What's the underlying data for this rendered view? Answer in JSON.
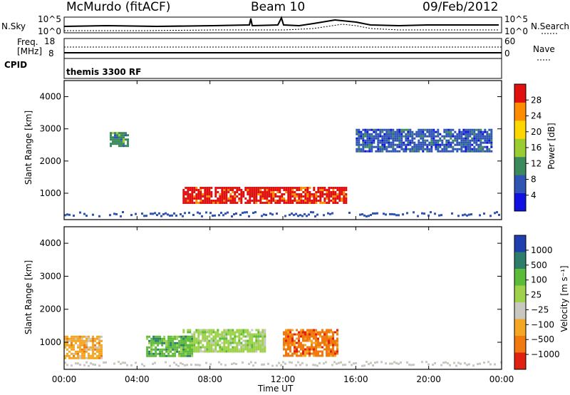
{
  "header": {
    "station": "McMurdo (fitACF)",
    "beam": "Beam 10",
    "date": "09/Feb/2012"
  },
  "noise_panel": {
    "left_label": "N.Sky",
    "right_label": "N.Search",
    "left_ticks": [
      "10^5",
      "10^0"
    ],
    "right_ticks": [
      "10^5",
      "10^0"
    ]
  },
  "freq_panel": {
    "left_label_1": "Freq.",
    "left_label_2": "[MHz]",
    "right_label": "Nave",
    "left_ticks": [
      "18",
      "8"
    ],
    "right_ticks": [
      "60",
      "0"
    ]
  },
  "cpid": {
    "label": "CPID",
    "value": "themis 3300 RF"
  },
  "chart_data": [
    {
      "type": "heatmap",
      "ylabel": "Slant Range [km]",
      "y_ticks": [
        "1000",
        "2000",
        "3000",
        "4000"
      ],
      "colorbar_label": "Power [dB]",
      "colorbar_ticks": [
        "4",
        "8",
        "12",
        "16",
        "20",
        "24",
        "28"
      ],
      "colorbar_colors": [
        "#1010e0",
        "#2f55b4",
        "#3a8a5c",
        "#9acd32",
        "#ffd700",
        "#ff8c00",
        "#e01010"
      ],
      "region_summary": [
        {
          "time_range": [
            "06:30",
            "15:30"
          ],
          "range_km": [
            700,
            1200
          ],
          "level_db": 28
        },
        {
          "time_range": [
            "02:30",
            "03:30"
          ],
          "range_km": [
            2500,
            2900
          ],
          "level_db": 12
        },
        {
          "time_range": [
            "16:00",
            "23:30"
          ],
          "range_km": [
            2300,
            3000
          ],
          "level_db": 8
        }
      ]
    },
    {
      "type": "heatmap",
      "ylabel": "Slant Range [km]",
      "xlabel": "Time UT",
      "x_ticks": [
        "00:00",
        "04:00",
        "08:00",
        "12:00",
        "16:00",
        "20:00",
        "00:00"
      ],
      "y_ticks": [
        "1000",
        "2000",
        "3000",
        "4000"
      ],
      "colorbar_label": "Velocity [m s⁻¹]",
      "colorbar_ticks": [
        "1000",
        "500",
        "100",
        "25",
        "−25",
        "−100",
        "−500",
        "−1000"
      ],
      "colorbar_colors": [
        "#1f3fb0",
        "#2e7d6a",
        "#5dbb3a",
        "#9ed24a",
        "#c8c8c0",
        "#f5a623",
        "#f07a10",
        "#e02010"
      ],
      "region_summary": [
        {
          "time_range": [
            "00:00",
            "02:00"
          ],
          "range_km": [
            500,
            1200
          ],
          "level": -100
        },
        {
          "time_range": [
            "06:30",
            "11:00"
          ],
          "range_km": [
            700,
            1400
          ],
          "level": 25
        },
        {
          "time_range": [
            "04:30",
            "07:00"
          ],
          "range_km": [
            600,
            1200
          ],
          "level": 100
        },
        {
          "time_range": [
            "12:00",
            "15:00"
          ],
          "range_km": [
            600,
            1400
          ],
          "level": -500
        }
      ]
    }
  ]
}
